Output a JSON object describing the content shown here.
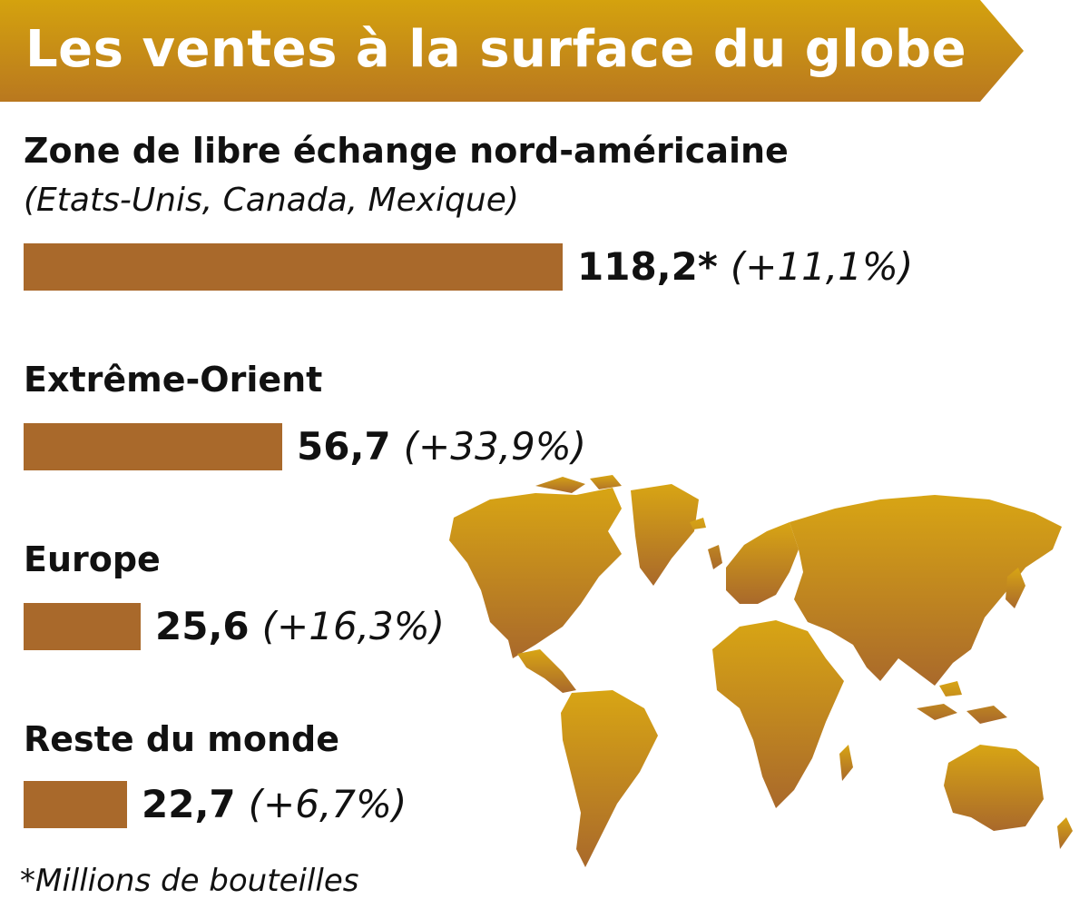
{
  "chart_data": {
    "type": "bar",
    "orientation": "horizontal",
    "title": "Les ventes à la surface du globe",
    "categories": [
      "Zone de libre échange nord-américaine",
      "Extrême-Orient",
      "Europe",
      "Reste du monde"
    ],
    "category_notes": [
      "(Etats-Unis, Canada, Mexique)",
      "",
      "",
      ""
    ],
    "values": [
      118.2,
      56.7,
      25.6,
      22.7
    ],
    "value_labels": [
      "118,2*",
      "56,7",
      "25,6",
      "22,7"
    ],
    "change_labels": [
      "(+11,1%)",
      "(+33,9%)",
      "(+16,3%)",
      "(+6,7%)"
    ],
    "footnote": "*Millions de bouteilles",
    "grid": false,
    "legend": "none",
    "colors": {
      "bar": "#a9692b",
      "banner_start": "#d4a20e",
      "banner_end": "#b9781f",
      "map_top": "#d8a514",
      "map_bottom": "#a9692b"
    }
  },
  "decor": {
    "map_icon": "world-map-icon"
  }
}
